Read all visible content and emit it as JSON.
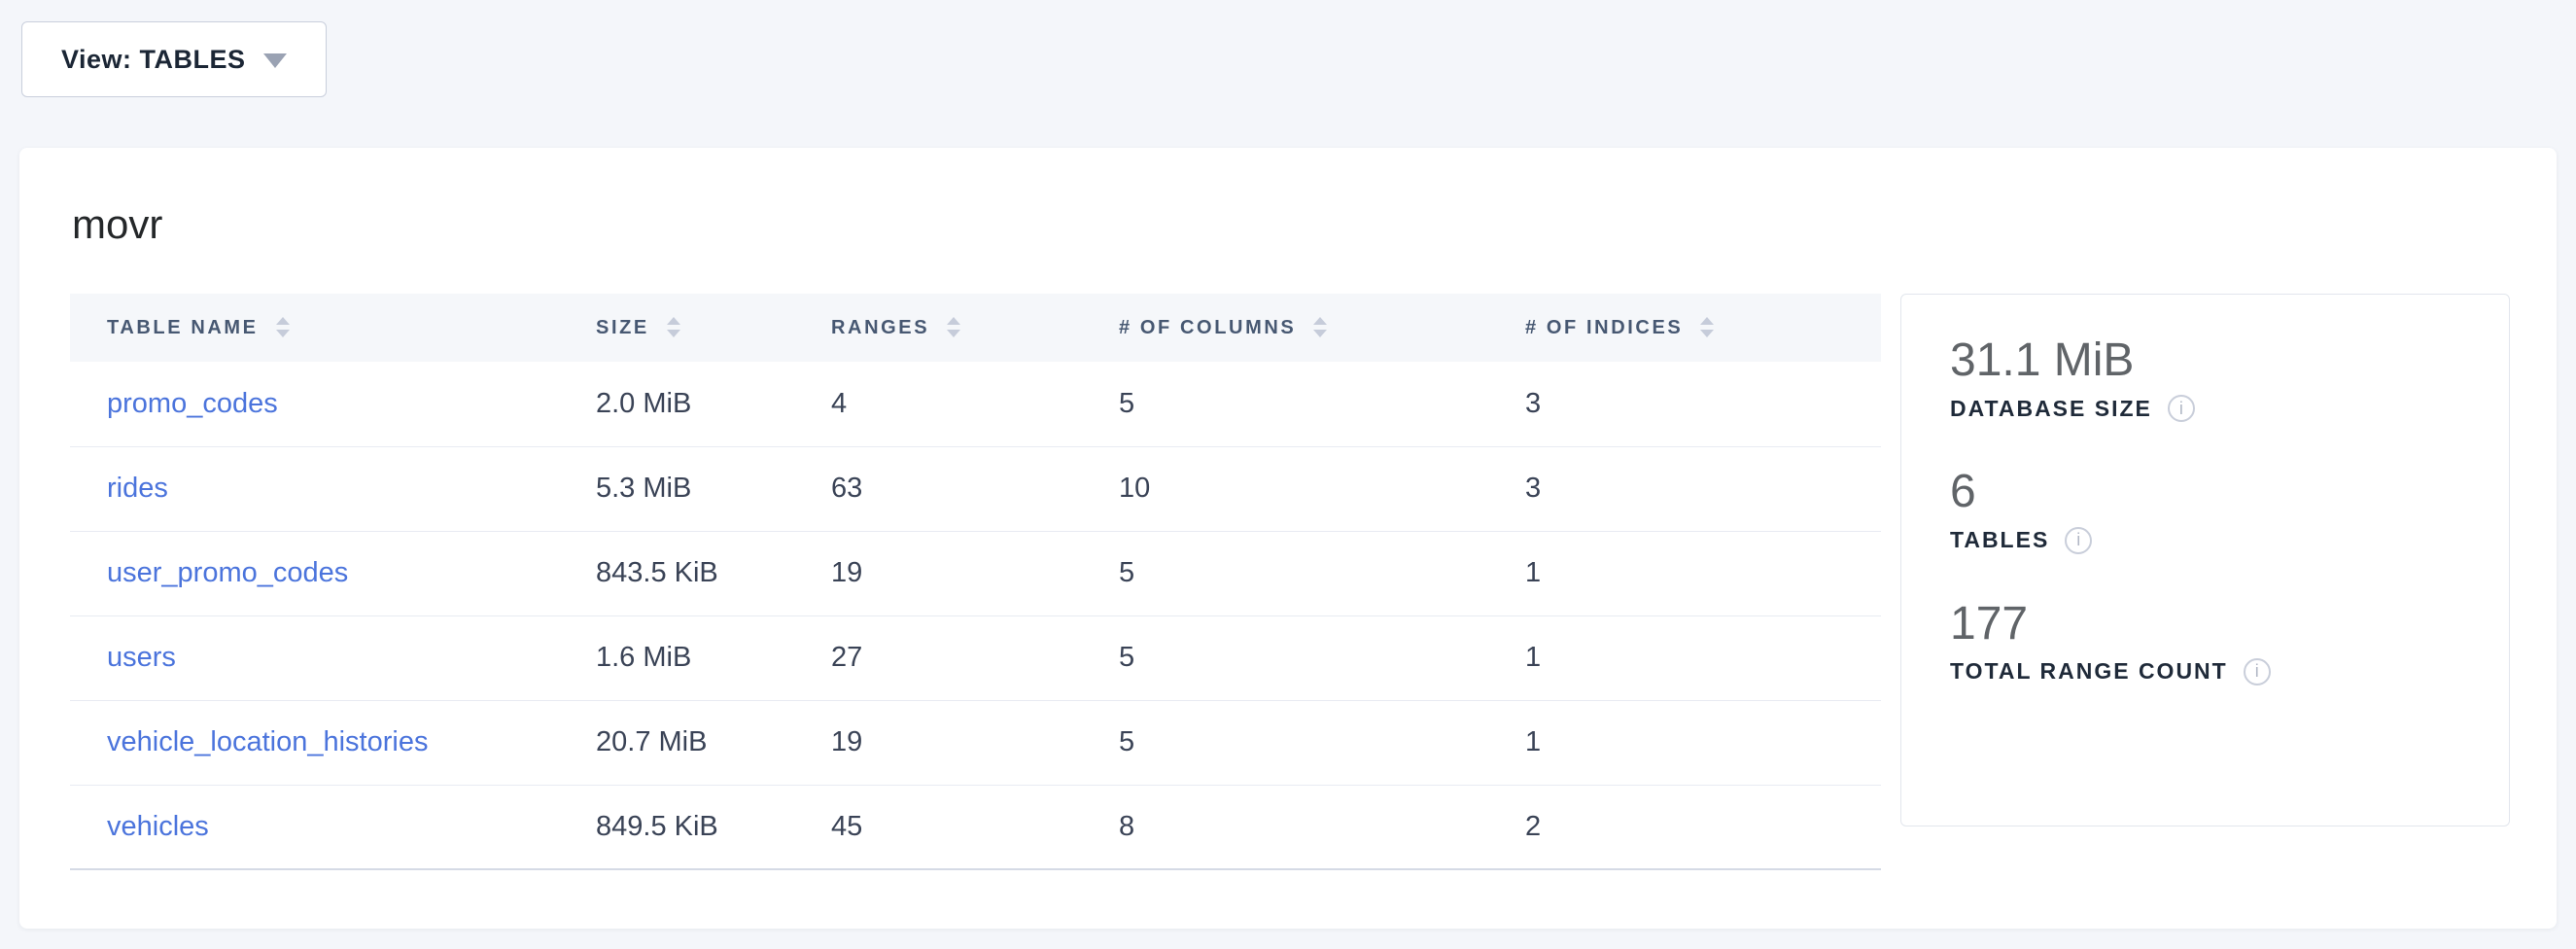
{
  "view_selector": {
    "label": "View: TABLES"
  },
  "database": {
    "name": "movr",
    "table": {
      "columns": [
        {
          "label": "TABLE NAME"
        },
        {
          "label": "SIZE"
        },
        {
          "label": "RANGES"
        },
        {
          "label": "# OF COLUMNS"
        },
        {
          "label": "# OF INDICES"
        }
      ],
      "rows": [
        {
          "name": "promo_codes",
          "size": "2.0 MiB",
          "ranges": "4",
          "columns": "5",
          "indices": "3"
        },
        {
          "name": "rides",
          "size": "5.3 MiB",
          "ranges": "63",
          "columns": "10",
          "indices": "3"
        },
        {
          "name": "user_promo_codes",
          "size": "843.5 KiB",
          "ranges": "19",
          "columns": "5",
          "indices": "1"
        },
        {
          "name": "users",
          "size": "1.6 MiB",
          "ranges": "27",
          "columns": "5",
          "indices": "1"
        },
        {
          "name": "vehicle_location_histories",
          "size": "20.7 MiB",
          "ranges": "19",
          "columns": "5",
          "indices": "1"
        },
        {
          "name": "vehicles",
          "size": "849.5 KiB",
          "ranges": "45",
          "columns": "8",
          "indices": "2"
        }
      ]
    },
    "summary": [
      {
        "value": "31.1 MiB",
        "label": "DATABASE SIZE"
      },
      {
        "value": "6",
        "label": "TABLES"
      },
      {
        "value": "177",
        "label": "TOTAL RANGE COUNT"
      }
    ],
    "info_glyph": "i"
  },
  "colors": {
    "page_background": "#F4F6FA",
    "card_background": "#FFFFFF",
    "header_row_background": "#F5F7FA",
    "header_text": "#475872",
    "sort_arrow": "#C6CCDA",
    "link_blue": "#4B74DC",
    "cell_text": "#3A4356",
    "stat_value_gray": "#606468",
    "stat_label_navy": "#1F2A39",
    "row_divider": "#E8EBF2"
  }
}
